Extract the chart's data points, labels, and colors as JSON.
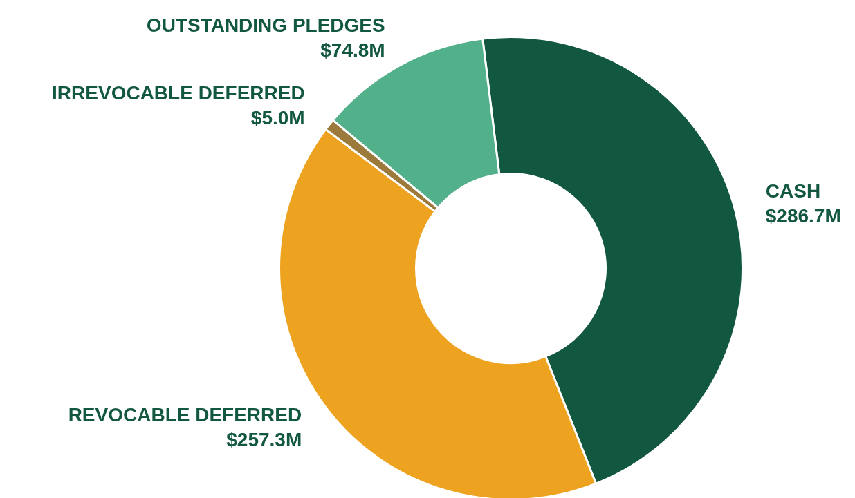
{
  "chart_data": {
    "type": "donut",
    "categories": [
      "CASH",
      "REVOCABLE DEFERRED",
      "IRREVOCABLE DEFERRED",
      "OUTSTANDING PLEDGES"
    ],
    "values": [
      286.7,
      257.3,
      5.0,
      74.8
    ],
    "colors": [
      "#12573f",
      "#eea320",
      "#9c7a3c",
      "#52b08a"
    ],
    "value_labels": [
      "$286.7M",
      "$257.3M",
      "$5.0M",
      "$74.8M"
    ]
  }
}
